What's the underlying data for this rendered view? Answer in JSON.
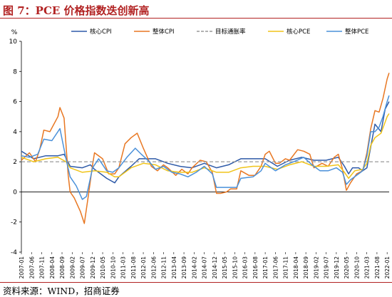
{
  "figure": {
    "title": "图 7：PCE 价格指数迭创新高",
    "source": "资料来源：WIND，招商证券"
  },
  "chart_data": {
    "type": "line",
    "title": "",
    "ylabel": "%",
    "xlabel": "",
    "ylim": [
      -4,
      10
    ],
    "yticks": [
      -4,
      -2,
      0,
      2,
      4,
      6,
      8,
      10
    ],
    "xlim": [
      2007.0,
      2022.083
    ],
    "xticks": [
      "2007-01",
      "2007-06",
      "2007-11",
      "2008-04",
      "2008-09",
      "2009-02",
      "2009-07",
      "2009-12",
      "2010-05",
      "2010-10",
      "2011-03",
      "2011-08",
      "2012-01",
      "2012-06",
      "2012-11",
      "2013-04",
      "2013-09",
      "2014-02",
      "2014-07",
      "2014-12",
      "2015-05",
      "2015-10",
      "2016-03",
      "2016-08",
      "2017-01",
      "2017-06",
      "2017-11",
      "2018-04",
      "2018-09",
      "2019-02",
      "2019-07",
      "2019-12",
      "2020-05",
      "2020-10",
      "2021-03",
      "2021-08",
      "2022-01"
    ],
    "grid": false,
    "legend_position": "top",
    "series": [
      {
        "name": "核心CPI",
        "color": "#2e5aa8",
        "x": [
          2007.0,
          2007.5,
          2008.0,
          2008.5,
          2008.75,
          2009.0,
          2009.5,
          2009.83,
          2010.0,
          2010.5,
          2010.83,
          2011.0,
          2011.5,
          2011.83,
          2012.0,
          2012.5,
          2013.0,
          2013.5,
          2014.0,
          2014.5,
          2015.0,
          2015.5,
          2016.0,
          2016.5,
          2017.0,
          2017.5,
          2018.0,
          2018.5,
          2019.0,
          2019.5,
          2020.0,
          2020.25,
          2020.42,
          2020.58,
          2020.83,
          2021.0,
          2021.17,
          2021.33,
          2021.5,
          2021.75,
          2021.92,
          2022.08
        ],
        "y": [
          2.7,
          2.2,
          2.4,
          2.4,
          2.5,
          1.7,
          1.6,
          1.8,
          1.5,
          0.9,
          0.6,
          1.0,
          1.7,
          2.2,
          2.2,
          2.2,
          1.9,
          1.7,
          1.6,
          1.9,
          1.6,
          1.8,
          2.2,
          2.2,
          2.2,
          1.7,
          2.1,
          2.3,
          2.1,
          2.1,
          2.3,
          1.7,
          1.2,
          1.6,
          1.6,
          1.4,
          1.6,
          3.0,
          4.5,
          4.0,
          5.5,
          6.0
        ]
      },
      {
        "name": "整体CPI",
        "color": "#e87722",
        "x": [
          2007.0,
          2007.33,
          2007.58,
          2007.75,
          2007.92,
          2008.17,
          2008.5,
          2008.58,
          2008.75,
          2008.92,
          2009.0,
          2009.17,
          2009.42,
          2009.58,
          2009.75,
          2009.92,
          2010.0,
          2010.33,
          2010.58,
          2010.83,
          2011.0,
          2011.25,
          2011.5,
          2011.75,
          2012.0,
          2012.33,
          2012.58,
          2012.83,
          2013.0,
          2013.33,
          2013.58,
          2013.83,
          2014.0,
          2014.33,
          2014.58,
          2014.83,
          2015.0,
          2015.17,
          2015.42,
          2015.58,
          2015.83,
          2016.0,
          2016.33,
          2016.58,
          2016.83,
          2017.0,
          2017.17,
          2017.42,
          2017.58,
          2017.83,
          2018.0,
          2018.33,
          2018.58,
          2018.83,
          2019.0,
          2019.33,
          2019.58,
          2019.83,
          2020.0,
          2020.17,
          2020.33,
          2020.5,
          2020.75,
          2021.0,
          2021.17,
          2021.33,
          2021.5,
          2021.67,
          2021.83,
          2022.0,
          2022.08
        ],
        "y": [
          2.1,
          2.6,
          2.0,
          2.8,
          4.1,
          4.0,
          5.0,
          5.6,
          4.9,
          1.1,
          0.0,
          -0.4,
          -1.3,
          -2.1,
          -0.2,
          1.8,
          2.6,
          2.2,
          1.2,
          1.2,
          1.6,
          3.2,
          3.6,
          3.9,
          2.9,
          1.7,
          1.4,
          1.8,
          1.6,
          1.1,
          1.5,
          1.2,
          1.6,
          2.1,
          2.0,
          1.3,
          -0.1,
          -0.1,
          0.0,
          0.2,
          0.2,
          1.4,
          1.1,
          1.1,
          1.7,
          2.5,
          2.7,
          1.9,
          1.9,
          2.2,
          2.1,
          2.8,
          2.7,
          2.5,
          1.6,
          1.9,
          1.7,
          2.3,
          2.5,
          1.5,
          0.1,
          0.6,
          1.2,
          1.4,
          2.6,
          4.2,
          5.4,
          5.3,
          6.2,
          7.5,
          7.9
        ]
      },
      {
        "name": "目标通胀率",
        "color": "#999999",
        "dashed": true,
        "x": [
          2007.0,
          2022.083
        ],
        "y": [
          2.0,
          2.0
        ]
      },
      {
        "name": "核心PCE",
        "color": "#f0c419",
        "x": [
          2007.0,
          2007.5,
          2008.0,
          2008.5,
          2008.83,
          2009.0,
          2009.5,
          2010.0,
          2010.5,
          2010.83,
          2011.0,
          2011.5,
          2012.0,
          2012.5,
          2013.0,
          2013.5,
          2014.0,
          2014.5,
          2015.0,
          2015.5,
          2016.0,
          2016.5,
          2017.0,
          2017.5,
          2018.0,
          2018.5,
          2019.0,
          2019.5,
          2020.0,
          2020.25,
          2020.42,
          2020.67,
          2021.0,
          2021.17,
          2021.33,
          2021.5,
          2021.75,
          2022.0,
          2022.08
        ],
        "y": [
          2.3,
          2.0,
          2.2,
          2.3,
          2.0,
          1.6,
          1.3,
          1.4,
          1.3,
          1.0,
          1.0,
          1.6,
          1.9,
          1.8,
          1.4,
          1.3,
          1.3,
          1.6,
          1.3,
          1.3,
          1.6,
          1.7,
          1.7,
          1.5,
          1.8,
          2.0,
          1.7,
          1.7,
          1.8,
          1.3,
          0.9,
          1.4,
          1.5,
          1.9,
          3.1,
          3.6,
          3.9,
          5.0,
          5.2
        ]
      },
      {
        "name": "整体PCE",
        "color": "#4a90d9",
        "x": [
          2007.0,
          2007.33,
          2007.67,
          2007.92,
          2008.25,
          2008.58,
          2008.83,
          2009.0,
          2009.25,
          2009.5,
          2009.67,
          2009.92,
          2010.17,
          2010.5,
          2010.75,
          2011.0,
          2011.33,
          2011.67,
          2011.92,
          2012.25,
          2012.5,
          2012.83,
          2013.17,
          2013.5,
          2013.83,
          2014.17,
          2014.5,
          2014.83,
          2015.0,
          2015.5,
          2015.83,
          2016.0,
          2016.5,
          2016.83,
          2017.0,
          2017.42,
          2017.83,
          2018.17,
          2018.58,
          2018.92,
          2019.25,
          2019.58,
          2019.92,
          2020.17,
          2020.33,
          2020.5,
          2020.83,
          2021.0,
          2021.17,
          2021.33,
          2021.5,
          2021.67,
          2021.83,
          2022.0,
          2022.08
        ],
        "y": [
          2.4,
          2.3,
          2.5,
          3.5,
          3.4,
          4.2,
          2.2,
          1.0,
          0.4,
          -0.5,
          -0.3,
          1.6,
          2.2,
          1.4,
          1.3,
          1.6,
          2.3,
          2.9,
          2.5,
          2.0,
          1.5,
          1.7,
          1.3,
          1.2,
          1.0,
          1.3,
          1.7,
          1.2,
          0.3,
          0.3,
          0.3,
          0.9,
          1.0,
          1.4,
          1.9,
          1.4,
          1.8,
          2.0,
          2.3,
          1.8,
          1.4,
          1.4,
          1.6,
          1.3,
          0.5,
          0.8,
          1.2,
          1.4,
          2.4,
          4.0,
          4.0,
          4.3,
          5.0,
          6.0,
          6.4
        ]
      }
    ]
  }
}
